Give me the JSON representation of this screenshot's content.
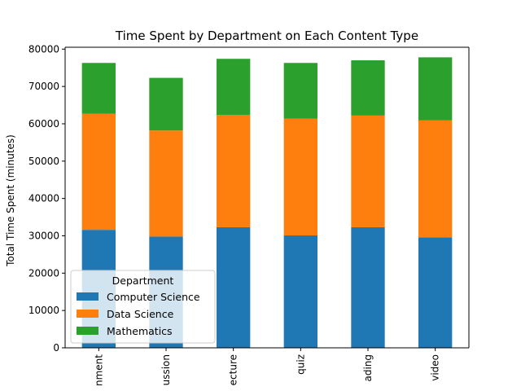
{
  "chart_data": {
    "type": "bar",
    "stacked": true,
    "title": "Time Spent by Department on Each Content Type",
    "xlabel": "",
    "ylabel": "Total Time Spent (minutes)",
    "categories": [
      "assignment",
      "discussion",
      "lecture",
      "quiz",
      "reading",
      "video"
    ],
    "category_labels_as_rendered": [
      "nment",
      "ussion",
      "ecture",
      "quiz",
      "ading",
      "video"
    ],
    "series": [
      {
        "name": "Computer Science",
        "color": "#1f77b4",
        "values": [
          31600,
          29800,
          32300,
          30100,
          32300,
          29600
        ]
      },
      {
        "name": "Data Science",
        "color": "#ff7f0e",
        "values": [
          31100,
          28400,
          30100,
          31300,
          29900,
          31300
        ]
      },
      {
        "name": "Mathematics",
        "color": "#2ca02c",
        "values": [
          13600,
          14100,
          15000,
          14900,
          14800,
          16900
        ]
      }
    ],
    "ylim": [
      0,
      80500
    ],
    "yticks": [
      0,
      10000,
      20000,
      30000,
      40000,
      50000,
      60000,
      70000,
      80000
    ],
    "ytick_labels": [
      "0",
      "10000",
      "20000",
      "30000",
      "40000",
      "50000",
      "60000",
      "70000",
      "80000"
    ],
    "grid": false,
    "legend": {
      "title": "Department",
      "placement": "lower-left"
    }
  }
}
